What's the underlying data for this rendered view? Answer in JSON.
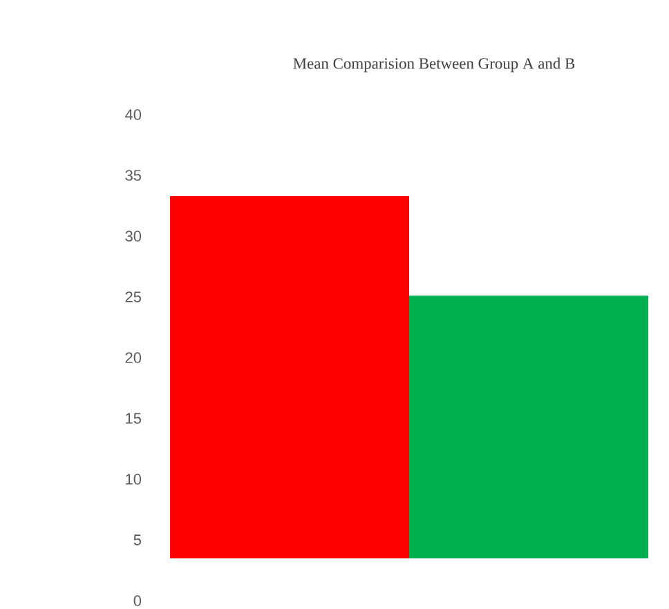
{
  "chart_data": {
    "type": "bar",
    "title": "Mean Comparision Between Group A and B",
    "categories": [
      null,
      null
    ],
    "values": [
      29.8,
      21.6
    ],
    "base": [
      3.5,
      3.5
    ],
    "colors": [
      "#ff0000",
      "#00b050"
    ],
    "ylim": [
      0,
      40
    ],
    "yticks": [
      0,
      5,
      10,
      15,
      20,
      25,
      30,
      35,
      40
    ]
  }
}
